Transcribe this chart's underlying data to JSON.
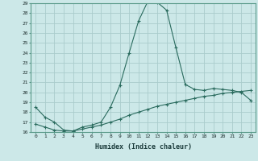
{
  "xlabel": "Humidex (Indice chaleur)",
  "background_color": "#cce8e8",
  "grid_color": "#aacccc",
  "line_color": "#2a6b5e",
  "line1_x": [
    0,
    1,
    2,
    3,
    4,
    5,
    6,
    7,
    8,
    9,
    10,
    11,
    12,
    13,
    14,
    15,
    16,
    17,
    18,
    19,
    20,
    21,
    22,
    23
  ],
  "line1_y": [
    18.5,
    17.5,
    17.0,
    16.2,
    16.1,
    16.5,
    16.7,
    17.0,
    18.5,
    20.7,
    24.0,
    27.2,
    29.2,
    29.1,
    28.3,
    24.5,
    20.8,
    20.3,
    20.2,
    20.4,
    20.3,
    20.2,
    20.0,
    19.2
  ],
  "line2_x": [
    0,
    1,
    2,
    3,
    4,
    5,
    6,
    7,
    8,
    9,
    10,
    11,
    12,
    13,
    14,
    15,
    16,
    17,
    18,
    19,
    20,
    21,
    22,
    23
  ],
  "line2_y": [
    16.8,
    16.5,
    16.2,
    16.1,
    16.1,
    16.3,
    16.5,
    16.7,
    17.0,
    17.3,
    17.7,
    18.0,
    18.3,
    18.6,
    18.8,
    19.0,
    19.2,
    19.4,
    19.6,
    19.7,
    19.9,
    20.0,
    20.1,
    20.2
  ],
  "ylim": [
    16,
    29
  ],
  "xlim": [
    -0.5,
    23.5
  ],
  "yticks": [
    16,
    17,
    18,
    19,
    20,
    21,
    22,
    23,
    24,
    25,
    26,
    27,
    28,
    29
  ],
  "xticks": [
    0,
    1,
    2,
    3,
    4,
    5,
    6,
    7,
    8,
    9,
    10,
    11,
    12,
    13,
    14,
    15,
    16,
    17,
    18,
    19,
    20,
    21,
    22,
    23
  ]
}
